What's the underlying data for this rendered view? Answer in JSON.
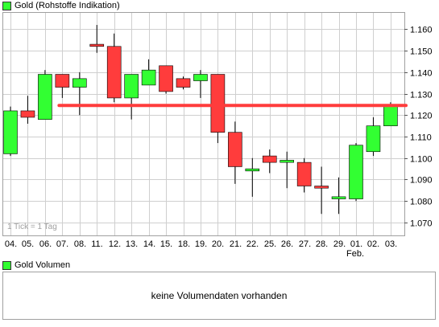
{
  "price_chart": {
    "legend_label": "Gold (Rohstoffe Indikation)",
    "tick_note": "1 Tick = 1 Tag",
    "month_label": "Feb."
  },
  "volume_chart": {
    "legend_label": "Gold Volumen",
    "message": "keine Volumendaten vorhanden"
  },
  "colors": {
    "up": "#32ff32",
    "down": "#ff3c3c",
    "wick": "#000000",
    "grid": "#cfcfcf",
    "reference_line": "#ff3c3c",
    "frame": "#a0a0a0"
  },
  "chart_data": {
    "type": "candlestick",
    "title": "Gold (Rohstoffe Indikation)",
    "xlabel": "",
    "ylabel": "",
    "ylim": [
      1.064,
      1.168
    ],
    "yticks": [
      "1.070",
      "1.080",
      "1.090",
      "1.100",
      "1.110",
      "1.120",
      "1.130",
      "1.140",
      "1.150",
      "1.160"
    ],
    "categories": [
      "04.",
      "05.",
      "06.",
      "07.",
      "08.",
      "11.",
      "12.",
      "13.",
      "14.",
      "15.",
      "18.",
      "19.",
      "20.",
      "21.",
      "22.",
      "25.",
      "26.",
      "27.",
      "28.",
      "29.",
      "01.",
      "02.",
      "03."
    ],
    "month_marker": {
      "category": "01.",
      "label": "Feb."
    },
    "reference_line": 1.1245,
    "grid": true,
    "series": [
      {
        "values": [
          {
            "o": 1.102,
            "h": 1.124,
            "l": 1.101,
            "c": 1.122
          },
          {
            "o": 1.122,
            "h": 1.129,
            "l": 1.116,
            "c": 1.119
          },
          {
            "o": 1.118,
            "h": 1.141,
            "l": 1.118,
            "c": 1.139
          },
          {
            "o": 1.139,
            "h": 1.139,
            "l": 1.128,
            "c": 1.133
          },
          {
            "o": 1.133,
            "h": 1.14,
            "l": 1.12,
            "c": 1.137
          },
          {
            "o": 1.153,
            "h": 1.162,
            "l": 1.149,
            "c": 1.152
          },
          {
            "o": 1.152,
            "h": 1.158,
            "l": 1.126,
            "c": 1.128
          },
          {
            "o": 1.128,
            "h": 1.139,
            "l": 1.118,
            "c": 1.139
          },
          {
            "o": 1.134,
            "h": 1.146,
            "l": 1.134,
            "c": 1.141
          },
          {
            "o": 1.143,
            "h": 1.143,
            "l": 1.13,
            "c": 1.131
          },
          {
            "o": 1.137,
            "h": 1.138,
            "l": 1.132,
            "c": 1.133
          },
          {
            "o": 1.136,
            "h": 1.141,
            "l": 1.128,
            "c": 1.139
          },
          {
            "o": 1.139,
            "h": 1.139,
            "l": 1.107,
            "c": 1.112
          },
          {
            "o": 1.112,
            "h": 1.117,
            "l": 1.088,
            "c": 1.096
          },
          {
            "o": 1.094,
            "h": 1.1,
            "l": 1.082,
            "c": 1.095
          },
          {
            "o": 1.101,
            "h": 1.104,
            "l": 1.093,
            "c": 1.098
          },
          {
            "o": 1.098,
            "h": 1.103,
            "l": 1.086,
            "c": 1.099
          },
          {
            "o": 1.098,
            "h": 1.1,
            "l": 1.084,
            "c": 1.087
          },
          {
            "o": 1.087,
            "h": 1.096,
            "l": 1.074,
            "c": 1.086
          },
          {
            "o": 1.081,
            "h": 1.091,
            "l": 1.074,
            "c": 1.082
          },
          {
            "o": 1.081,
            "h": 1.107,
            "l": 1.08,
            "c": 1.106
          },
          {
            "o": 1.103,
            "h": 1.119,
            "l": 1.101,
            "c": 1.115
          },
          {
            "o": 1.115,
            "h": 1.126,
            "l": 1.115,
            "c": 1.124
          }
        ]
      }
    ]
  }
}
